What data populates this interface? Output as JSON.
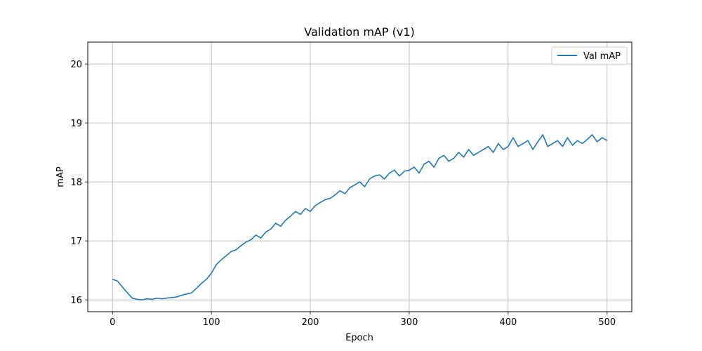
{
  "chart_data": {
    "type": "line",
    "title": "Validation mAP (v1)",
    "xlabel": "Epoch",
    "ylabel": "mAP",
    "xlim": [
      -25,
      525
    ],
    "ylim": [
      15.8,
      20.37
    ],
    "xticks": [
      0,
      100,
      200,
      300,
      400,
      500
    ],
    "yticks": [
      16,
      17,
      18,
      19,
      20
    ],
    "grid": true,
    "legend": "top-right",
    "series": [
      {
        "name": "Val mAP",
        "color": "#1f77b4",
        "x": [
          0,
          5,
          10,
          15,
          20,
          25,
          30,
          35,
          40,
          45,
          50,
          55,
          60,
          65,
          70,
          75,
          80,
          85,
          90,
          95,
          100,
          105,
          110,
          115,
          120,
          125,
          130,
          135,
          140,
          145,
          150,
          155,
          160,
          165,
          170,
          175,
          180,
          185,
          190,
          195,
          200,
          205,
          210,
          215,
          220,
          225,
          230,
          235,
          240,
          245,
          250,
          255,
          260,
          265,
          270,
          275,
          280,
          285,
          290,
          295,
          300,
          305,
          310,
          315,
          320,
          325,
          330,
          335,
          340,
          345,
          350,
          355,
          360,
          365,
          370,
          375,
          380,
          385,
          390,
          395,
          400,
          405,
          410,
          415,
          420,
          425,
          430,
          435,
          440,
          445,
          450,
          455,
          460,
          465,
          470,
          475,
          480,
          485,
          490,
          495,
          500
        ],
        "values": [
          16.35,
          16.32,
          16.22,
          16.12,
          16.03,
          16.01,
          16.0,
          16.02,
          16.01,
          16.03,
          16.02,
          16.03,
          16.04,
          16.05,
          16.08,
          16.1,
          16.12,
          16.2,
          16.28,
          16.35,
          16.45,
          16.6,
          16.68,
          16.75,
          16.82,
          16.85,
          16.92,
          16.98,
          17.02,
          17.1,
          17.05,
          17.15,
          17.2,
          17.3,
          17.25,
          17.35,
          17.42,
          17.5,
          17.45,
          17.55,
          17.5,
          17.6,
          17.65,
          17.7,
          17.72,
          17.78,
          17.85,
          17.8,
          17.9,
          17.95,
          18.0,
          17.92,
          18.05,
          18.1,
          18.12,
          18.05,
          18.15,
          18.2,
          18.1,
          18.18,
          18.2,
          18.25,
          18.15,
          18.3,
          18.35,
          18.25,
          18.4,
          18.45,
          18.35,
          18.4,
          18.5,
          18.42,
          18.55,
          18.45,
          18.5,
          18.55,
          18.6,
          18.5,
          18.65,
          18.55,
          18.6,
          18.75,
          18.6,
          18.65,
          18.7,
          18.55,
          18.68,
          18.8,
          18.6,
          18.65,
          18.7,
          18.6,
          18.75,
          18.62,
          18.7,
          18.65,
          18.72,
          18.8,
          18.68,
          18.75,
          18.7
        ]
      }
    ]
  }
}
